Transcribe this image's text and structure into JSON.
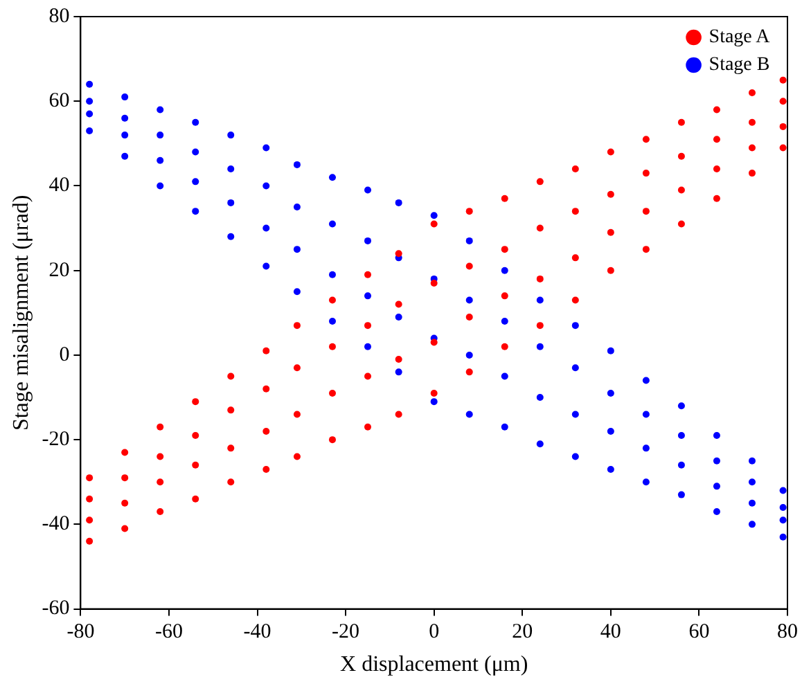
{
  "chart_data": {
    "type": "scatter",
    "xlabel": "X displacement (μm)",
    "ylabel": "Stage misalignment (μrad)",
    "xlim": [
      -80,
      80
    ],
    "xticks": [
      -80,
      -60,
      -40,
      -20,
      0,
      20,
      40,
      60,
      80
    ],
    "ylim": [
      -60,
      80
    ],
    "yticks": [
      -60,
      -40,
      -20,
      0,
      20,
      40,
      60,
      80
    ],
    "grid": false,
    "legend": "top right",
    "marker": "circle",
    "series": [
      {
        "name": "Stage A",
        "color": "#ff0000",
        "x": [
          -78,
          -78,
          -78,
          -78,
          -70,
          -70,
          -70,
          -70,
          -62,
          -62,
          -62,
          -62,
          -54,
          -54,
          -54,
          -54,
          -46,
          -46,
          -46,
          -46,
          -38,
          -38,
          -38,
          -38,
          -31,
          -31,
          -31,
          -31,
          -23,
          -23,
          -23,
          -23,
          -15,
          -15,
          -15,
          -15,
          -8,
          -8,
          -8,
          -8,
          0,
          0,
          0,
          0,
          8,
          8,
          8,
          8,
          16,
          16,
          16,
          16,
          24,
          24,
          24,
          24,
          32,
          32,
          32,
          32,
          40,
          40,
          40,
          40,
          48,
          48,
          48,
          48,
          56,
          56,
          56,
          56,
          64,
          64,
          64,
          64,
          72,
          72,
          72,
          72,
          79,
          79,
          79,
          79
        ],
        "values": [
          -29,
          -34,
          -39,
          -44,
          -23,
          -29,
          -35,
          -41,
          -17,
          -24,
          -30,
          -37,
          -11,
          -19,
          -26,
          -34,
          -5,
          -13,
          -22,
          -30,
          1,
          -8,
          -18,
          -27,
          7,
          -3,
          -14,
          -24,
          13,
          2,
          -9,
          -20,
          19,
          7,
          -5,
          -17,
          24,
          12,
          -1,
          -14,
          31,
          17,
          3,
          -9,
          34,
          21,
          9,
          -4,
          37,
          25,
          14,
          2,
          41,
          30,
          18,
          7,
          44,
          34,
          23,
          13,
          48,
          38,
          29,
          20,
          51,
          43,
          34,
          25,
          55,
          47,
          39,
          31,
          58,
          51,
          44,
          37,
          62,
          55,
          49,
          43,
          65,
          60,
          54,
          49
        ]
      },
      {
        "name": "Stage B",
        "color": "#0000ff",
        "x": [
          -78,
          -78,
          -78,
          -78,
          -70,
          -70,
          -70,
          -70,
          -62,
          -62,
          -62,
          -62,
          -54,
          -54,
          -54,
          -54,
          -46,
          -46,
          -46,
          -46,
          -38,
          -38,
          -38,
          -38,
          -31,
          -31,
          -31,
          -31,
          -23,
          -23,
          -23,
          -23,
          -15,
          -15,
          -15,
          -15,
          -8,
          -8,
          -8,
          -8,
          0,
          0,
          0,
          0,
          8,
          8,
          8,
          8,
          16,
          16,
          16,
          16,
          24,
          24,
          24,
          24,
          32,
          32,
          32,
          32,
          40,
          40,
          40,
          40,
          48,
          48,
          48,
          48,
          56,
          56,
          56,
          56,
          64,
          64,
          64,
          64,
          72,
          72,
          72,
          72,
          79,
          79,
          79,
          79
        ],
        "values": [
          64,
          60,
          57,
          53,
          61,
          56,
          52,
          47,
          58,
          52,
          46,
          40,
          55,
          48,
          41,
          34,
          52,
          44,
          36,
          28,
          49,
          40,
          30,
          21,
          45,
          35,
          25,
          15,
          42,
          31,
          19,
          8,
          39,
          27,
          14,
          2,
          36,
          23,
          9,
          -4,
          33,
          18,
          4,
          -11,
          27,
          13,
          0,
          -14,
          20,
          8,
          -5,
          -17,
          13,
          2,
          -10,
          -21,
          7,
          -3,
          -14,
          -24,
          1,
          -9,
          -18,
          -27,
          -6,
          -14,
          -22,
          -30,
          -12,
          -19,
          -26,
          -33,
          -19,
          -25,
          -31,
          -37,
          -25,
          -30,
          -35,
          -40,
          -32,
          -36,
          -39,
          -43
        ]
      }
    ]
  }
}
